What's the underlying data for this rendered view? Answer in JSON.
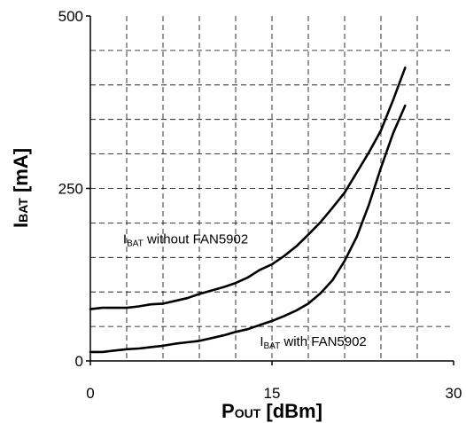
{
  "chart_data": {
    "type": "line",
    "xlabel": {
      "main": "P",
      "sub": "OUT",
      "rest": " [dBm]"
    },
    "ylabel": {
      "main": "I",
      "sub": "BAT",
      "rest": " [mA]"
    },
    "xlim": [
      0,
      30
    ],
    "ylim": [
      0,
      500
    ],
    "x_ticks": [
      "0",
      "15",
      "30"
    ],
    "y_ticks": [
      "0",
      "250",
      "500"
    ],
    "x_grid": [
      3,
      6,
      9,
      12,
      15,
      18,
      21,
      24,
      27
    ],
    "y_grid": [
      50,
      100,
      150,
      200,
      250,
      300,
      350,
      400,
      450
    ],
    "grid": true,
    "series": [
      {
        "key": "without",
        "x": [
          0,
          1,
          3,
          4,
          5,
          6,
          7,
          8,
          9,
          10,
          11,
          12,
          13,
          14,
          15,
          16,
          17,
          18,
          19,
          20,
          21,
          22,
          23,
          24,
          25,
          26
        ],
        "y": [
          75,
          77,
          77,
          79,
          82,
          83,
          87,
          91,
          97,
          102,
          107,
          113,
          121,
          132,
          140,
          152,
          166,
          183,
          201,
          222,
          244,
          273,
          302,
          334,
          378,
          425
        ],
        "color": "#000000"
      },
      {
        "key": "with",
        "x": [
          0,
          1,
          2,
          3,
          4,
          5,
          6,
          7,
          8,
          9,
          10,
          11,
          12,
          13,
          14,
          15,
          16,
          17,
          18,
          19,
          20,
          21,
          22,
          23,
          24,
          25,
          26
        ],
        "y": [
          13,
          13,
          15,
          17,
          18,
          20,
          22,
          25,
          27,
          29,
          33,
          37,
          42,
          46,
          52,
          58,
          65,
          73,
          83,
          98,
          117,
          145,
          180,
          226,
          280,
          330,
          370
        ],
        "color": "#000000"
      }
    ],
    "annotations": [
      {
        "main": "I",
        "sub": "BAT",
        "rest": " without FAN5902",
        "x": 2.7,
        "y": 170
      },
      {
        "main": "I",
        "sub": "BAT",
        "rest": " with FAN5902",
        "x": 14,
        "y": 22
      }
    ],
    "line_color": "#000000",
    "grid_color": "#000000"
  }
}
